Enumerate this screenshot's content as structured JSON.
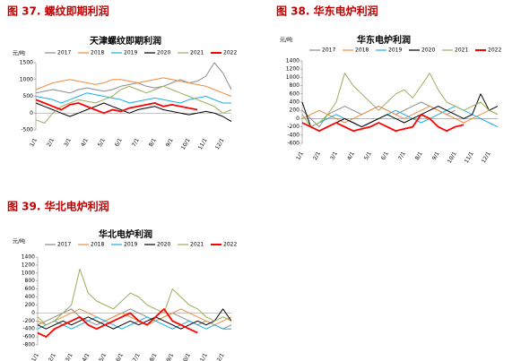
{
  "chart_data": [
    {
      "type": "line",
      "caption": "图 37. 螺纹即期利润",
      "title": "天津螺纹即期利润",
      "y_label": "元/吨",
      "categories": [
        "1/1",
        null,
        "2/1",
        null,
        "3/1",
        null,
        "4/1",
        null,
        "5/1",
        null,
        "6/1",
        null,
        "7/1",
        null,
        "8/1",
        null,
        "9/1",
        null,
        "10/1",
        null,
        "11/1",
        null,
        "12/1",
        null
      ],
      "ylim": [
        -500,
        1500
      ],
      "yticks": [
        -500,
        0,
        500,
        1000,
        1500
      ],
      "series": [
        {
          "name": "2017",
          "color": "#8c8c8c",
          "values": [
            600,
            650,
            700,
            650,
            600,
            700,
            750,
            700,
            650,
            700,
            800,
            850,
            900,
            800,
            750,
            800,
            900,
            1000,
            900,
            950,
            1100,
            1500,
            1200,
            700
          ]
        },
        {
          "name": "2018",
          "color": "#f08a3c",
          "values": [
            700,
            800,
            900,
            950,
            1000,
            950,
            900,
            850,
            900,
            1000,
            1000,
            950,
            900,
            950,
            1000,
            1050,
            1000,
            950,
            900,
            850,
            800,
            700,
            600,
            500
          ]
        },
        {
          "name": "2019",
          "color": "#1aaee5",
          "values": [
            500,
            450,
            400,
            300,
            400,
            500,
            600,
            550,
            500,
            450,
            400,
            300,
            350,
            400,
            450,
            400,
            350,
            300,
            400,
            450,
            500,
            400,
            300,
            300
          ]
        },
        {
          "name": "2020",
          "color": "#000000",
          "values": [
            300,
            200,
            100,
            0,
            -100,
            0,
            100,
            200,
            300,
            200,
            100,
            0,
            100,
            150,
            200,
            100,
            50,
            0,
            -50,
            0,
            50,
            0,
            -100,
            -250
          ]
        },
        {
          "name": "2021",
          "color": "#9aaf5a",
          "values": [
            -200,
            -300,
            0,
            200,
            300,
            400,
            350,
            300,
            400,
            500,
            700,
            800,
            700,
            600,
            700,
            800,
            700,
            600,
            500,
            400,
            300,
            200,
            0,
            100
          ]
        },
        {
          "name": "2022",
          "color": "#ff0000",
          "values": [
            400,
            300,
            200,
            100,
            250,
            300,
            200,
            100,
            0,
            100,
            50,
            150,
            200,
            250,
            300,
            200,
            250,
            200,
            150,
            100,
            null,
            null,
            null,
            null
          ]
        }
      ]
    },
    {
      "type": "line",
      "caption": "图 38. 华东电炉利润",
      "title": "华东电炉利润",
      "y_label": "元/吨",
      "categories": [
        "1/1",
        null,
        "2/1",
        null,
        "3/1",
        null,
        "4/1",
        null,
        "5/1",
        null,
        "6/1",
        null,
        "7/1",
        null,
        "8/1",
        null,
        "9/1",
        null,
        "10/1",
        null,
        "11/1",
        null,
        "12/1",
        null
      ],
      "ylim": [
        -600,
        1400
      ],
      "yticks": [
        -600,
        -400,
        -200,
        0,
        200,
        400,
        600,
        800,
        1000,
        1200,
        1400
      ],
      "series": [
        {
          "name": "2017",
          "color": "#8c8c8c",
          "values": [
            200,
            0,
            -200,
            100,
            200,
            300,
            200,
            100,
            200,
            300,
            200,
            100,
            200,
            300,
            400,
            300,
            200,
            100,
            200,
            null,
            null,
            null,
            null,
            null
          ]
        },
        {
          "name": "2018",
          "color": "#f08a3c",
          "values": [
            0,
            100,
            200,
            100,
            0,
            -100,
            0,
            100,
            200,
            300,
            200,
            100,
            0,
            100,
            200,
            300,
            200,
            100,
            0,
            -100,
            0,
            100,
            200,
            100
          ]
        },
        {
          "name": "2019",
          "color": "#1aaee5",
          "values": [
            -100,
            -200,
            -100,
            0,
            100,
            0,
            -100,
            -200,
            -100,
            0,
            100,
            200,
            100,
            0,
            -100,
            0,
            100,
            200,
            300,
            200,
            100,
            0,
            -100,
            -200
          ]
        },
        {
          "name": "2020",
          "color": "#000000",
          "values": [
            400,
            -200,
            -300,
            -200,
            -100,
            0,
            -100,
            -200,
            -100,
            0,
            100,
            0,
            -100,
            0,
            100,
            200,
            300,
            200,
            100,
            0,
            100,
            600,
            200,
            300
          ]
        },
        {
          "name": "2021",
          "color": "#9aaf5a",
          "values": [
            100,
            -200,
            -100,
            100,
            400,
            1100,
            800,
            600,
            400,
            200,
            400,
            600,
            700,
            500,
            800,
            1100,
            700,
            400,
            300,
            200,
            300,
            400,
            200,
            100
          ]
        },
        {
          "name": "2022",
          "color": "#ff0000",
          "values": [
            -100,
            -200,
            -300,
            -200,
            -100,
            -200,
            -300,
            -250,
            -200,
            -100,
            -200,
            -300,
            -250,
            -200,
            100,
            0,
            -200,
            -300,
            -200,
            -150,
            null,
            null,
            null,
            null
          ]
        }
      ]
    },
    {
      "type": "line",
      "caption": "图 39. 华北电炉利润",
      "title": "华北电炉利润",
      "y_label": "元/吨",
      "categories": [
        "1/1",
        null,
        "2/1",
        null,
        "3/1",
        null,
        "4/1",
        null,
        "5/1",
        null,
        "6/1",
        null,
        "7/1",
        null,
        "8/1",
        null,
        "9/1",
        null,
        "10/1",
        null,
        "11/1",
        null,
        "12/1",
        null
      ],
      "ylim": [
        -800,
        1400
      ],
      "yticks": [
        -800,
        -600,
        -400,
        -200,
        0,
        200,
        400,
        600,
        800,
        1000,
        1200,
        1400
      ],
      "series": [
        {
          "name": "2017",
          "color": "#8c8c8c",
          "values": [
            -300,
            -200,
            -100,
            0,
            100,
            -100,
            -200,
            -300,
            -200,
            -100,
            0,
            100,
            0,
            -100,
            -200,
            -100,
            0,
            -100,
            -200,
            -300,
            -200,
            -300,
            -400,
            -300
          ]
        },
        {
          "name": "2018",
          "color": "#f08a3c",
          "values": [
            -200,
            -300,
            -200,
            -100,
            0,
            100,
            0,
            -100,
            -200,
            -100,
            0,
            -100,
            -200,
            -300,
            -200,
            -100,
            0,
            100,
            0,
            -100,
            -200,
            -300,
            -200,
            -100
          ]
        },
        {
          "name": "2019",
          "color": "#1aaee5",
          "values": [
            -400,
            -300,
            -200,
            -300,
            -400,
            -300,
            -200,
            -100,
            -200,
            -300,
            -400,
            -300,
            -200,
            -100,
            -200,
            -300,
            -400,
            -300,
            -200,
            -300,
            -400,
            -300,
            -400,
            -400
          ]
        },
        {
          "name": "2020",
          "color": "#000000",
          "values": [
            -300,
            -400,
            -300,
            -200,
            -300,
            -200,
            -100,
            -200,
            -300,
            -400,
            -300,
            -200,
            -300,
            -200,
            -100,
            -200,
            -300,
            -400,
            -300,
            -200,
            -300,
            -200,
            100,
            -200
          ]
        },
        {
          "name": "2021",
          "color": "#9aaf5a",
          "values": [
            -100,
            -300,
            -200,
            0,
            200,
            1100,
            500,
            300,
            200,
            100,
            300,
            500,
            400,
            200,
            100,
            0,
            600,
            400,
            200,
            100,
            -100,
            -200,
            -100,
            -200
          ]
        },
        {
          "name": "2022",
          "color": "#ff0000",
          "values": [
            -500,
            -600,
            -400,
            -300,
            -200,
            -100,
            -300,
            -400,
            -300,
            -200,
            -100,
            0,
            -200,
            -300,
            -100,
            100,
            -200,
            -300,
            -400,
            -500,
            null,
            null,
            null,
            null
          ]
        }
      ]
    }
  ]
}
